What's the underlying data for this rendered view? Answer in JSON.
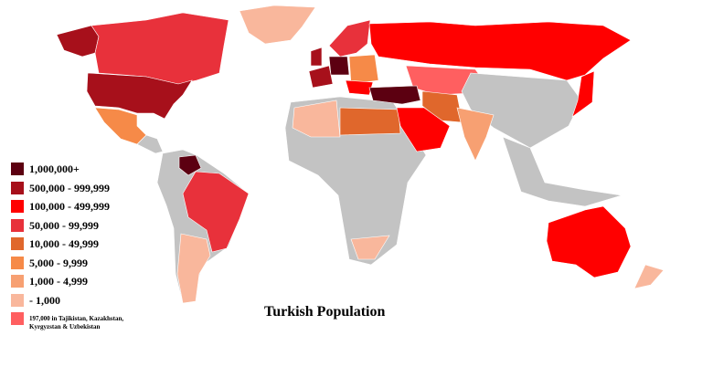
{
  "title": "Turkish Population",
  "legend": [
    {
      "label": "1,000,000+",
      "color": "#5c0011"
    },
    {
      "label": "500,000 - 999,999",
      "color": "#a7101b"
    },
    {
      "label": "100,000 - 499,999",
      "color": "#ff0000"
    },
    {
      "label": "50,000 - 99,999",
      "color": "#e8313b"
    },
    {
      "label": "10,000 - 49,999",
      "color": "#e0672c"
    },
    {
      "label": "5,000 - 9,999",
      "color": "#f68a48"
    },
    {
      "label": "1,000 - 4,999",
      "color": "#f7a072"
    },
    {
      "label": "- 1,000",
      "color": "#f9b79c"
    },
    {
      "label": "197,000 in Tajikistan, Kazakhstan, Kyrgyzstan & Uzbekistan",
      "color": "#ff5f60"
    }
  ]
}
